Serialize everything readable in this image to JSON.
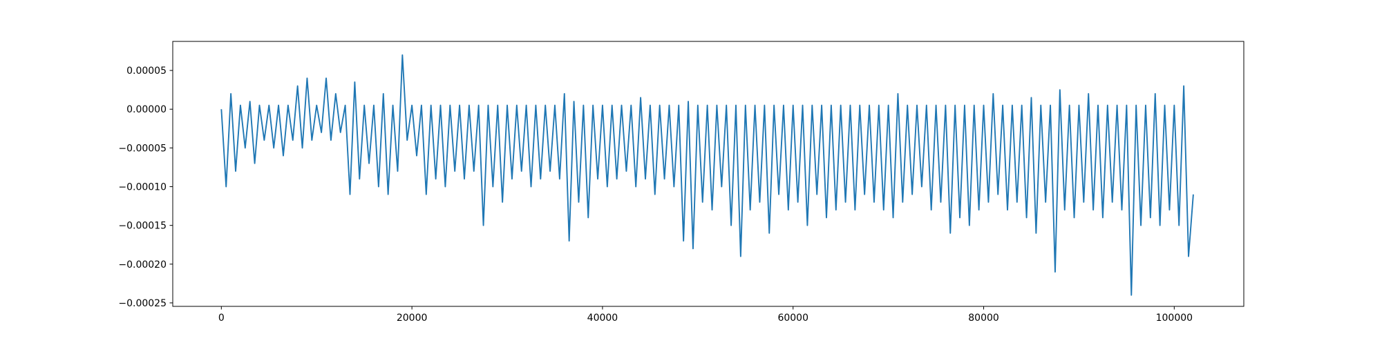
{
  "chart_data": {
    "type": "line",
    "color": "#1f77b4",
    "x": [
      0,
      500,
      1000,
      1500,
      2000,
      2500,
      3000,
      3500,
      4000,
      4500,
      5000,
      5500,
      6000,
      6500,
      7000,
      7500,
      8000,
      8500,
      9000,
      9500,
      10000,
      10500,
      11000,
      11500,
      12000,
      12500,
      13000,
      13500,
      14000,
      14500,
      15000,
      15500,
      16000,
      16500,
      17000,
      17500,
      18000,
      18500,
      19000,
      19500,
      20000,
      20500,
      21000,
      21500,
      22000,
      22500,
      23000,
      23500,
      24000,
      24500,
      25000,
      25500,
      26000,
      26500,
      27000,
      27500,
      28000,
      28500,
      29000,
      29500,
      30000,
      30500,
      31000,
      31500,
      32000,
      32500,
      33000,
      33500,
      34000,
      34500,
      35000,
      35500,
      36000,
      36500,
      37000,
      37500,
      38000,
      38500,
      39000,
      39500,
      40000,
      40500,
      41000,
      41500,
      42000,
      42500,
      43000,
      43500,
      44000,
      44500,
      45000,
      45500,
      46000,
      46500,
      47000,
      47500,
      48000,
      48500,
      49000,
      49500,
      50000,
      50500,
      51000,
      51500,
      52000,
      52500,
      53000,
      53500,
      54000,
      54500,
      55000,
      55500,
      56000,
      56500,
      57000,
      57500,
      58000,
      58500,
      59000,
      59500,
      60000,
      60500,
      61000,
      61500,
      62000,
      62500,
      63000,
      63500,
      64000,
      64500,
      65000,
      65500,
      66000,
      66500,
      67000,
      67500,
      68000,
      68500,
      69000,
      69500,
      70000,
      70500,
      71000,
      71500,
      72000,
      72500,
      73000,
      73500,
      74000,
      74500,
      75000,
      75500,
      76000,
      76500,
      77000,
      77500,
      78000,
      78500,
      79000,
      79500,
      80000,
      80500,
      81000,
      81500,
      82000,
      82500,
      83000,
      83500,
      84000,
      84500,
      85000,
      85500,
      86000,
      86500,
      87000,
      87500,
      88000,
      88500,
      89000,
      89500,
      90000,
      90500,
      91000,
      91500,
      92000,
      92500,
      93000,
      93500,
      94000,
      94500,
      95000,
      95500,
      96000,
      96500,
      97000,
      97500,
      98000,
      98500,
      99000,
      99500,
      100000,
      100500,
      101000,
      101500,
      102000
    ],
    "values": [
      0,
      -0.0001,
      2e-05,
      -8e-05,
      5e-06,
      -5e-05,
      1e-05,
      -7e-05,
      5e-06,
      -4e-05,
      5e-06,
      -5e-05,
      5e-06,
      -6e-05,
      5e-06,
      -4e-05,
      3e-05,
      -5e-05,
      4e-05,
      -4e-05,
      5e-06,
      -3e-05,
      4e-05,
      -4e-05,
      2e-05,
      -3e-05,
      5e-06,
      -0.00011,
      3.5e-05,
      -9e-05,
      5e-06,
      -7e-05,
      5e-06,
      -0.0001,
      2e-05,
      -0.00011,
      5e-06,
      -8e-05,
      7e-05,
      -4e-05,
      5e-06,
      -6e-05,
      5e-06,
      -0.00011,
      5e-06,
      -9e-05,
      5e-06,
      -0.0001,
      5e-06,
      -8e-05,
      5e-06,
      -9e-05,
      5e-06,
      -8e-05,
      5e-06,
      -0.00015,
      5e-06,
      -0.0001,
      5e-06,
      -0.00012,
      5e-06,
      -9e-05,
      5e-06,
      -8e-05,
      5e-06,
      -0.0001,
      5e-06,
      -9e-05,
      5e-06,
      -8e-05,
      5e-06,
      -9e-05,
      2e-05,
      -0.00017,
      1e-05,
      -0.00012,
      5e-06,
      -0.00014,
      5e-06,
      -9e-05,
      5e-06,
      -0.0001,
      5e-06,
      -9e-05,
      5e-06,
      -8e-05,
      5e-06,
      -0.0001,
      1.5e-05,
      -9e-05,
      5e-06,
      -0.00011,
      5e-06,
      -9e-05,
      5e-06,
      -0.0001,
      5e-06,
      -0.00017,
      1e-05,
      -0.00018,
      5e-06,
      -0.00012,
      5e-06,
      -0.00013,
      5e-06,
      -0.0001,
      5e-06,
      -0.00015,
      5e-06,
      -0.00019,
      5e-06,
      -0.00013,
      5e-06,
      -0.00012,
      5e-06,
      -0.00016,
      5e-06,
      -0.00011,
      5e-06,
      -0.00013,
      5e-06,
      -0.00012,
      5e-06,
      -0.00015,
      5e-06,
      -0.00011,
      5e-06,
      -0.00014,
      5e-06,
      -0.00013,
      5e-06,
      -0.00012,
      5e-06,
      -0.00013,
      5e-06,
      -0.00011,
      5e-06,
      -0.00012,
      5e-06,
      -0.00013,
      5e-06,
      -0.00014,
      2e-05,
      -0.00012,
      5e-06,
      -0.00011,
      5e-06,
      -0.0001,
      5e-06,
      -0.00013,
      5e-06,
      -0.00012,
      5e-06,
      -0.00016,
      5e-06,
      -0.00014,
      5e-06,
      -0.00015,
      5e-06,
      -0.00013,
      5e-06,
      -0.00012,
      2e-05,
      -0.00011,
      5e-06,
      -0.00013,
      5e-06,
      -0.00012,
      5e-06,
      -0.00014,
      1.5e-05,
      -0.00016,
      5e-06,
      -0.00012,
      5e-06,
      -0.00021,
      2.5e-05,
      -0.00013,
      5e-06,
      -0.00014,
      5e-06,
      -0.00012,
      2e-05,
      -0.00013,
      5e-06,
      -0.00014,
      5e-06,
      -0.00012,
      5e-06,
      -0.00013,
      5e-06,
      -0.00024,
      5e-06,
      -0.00015,
      5e-06,
      -0.00014,
      2e-05,
      -0.00015,
      5e-06,
      -0.00013,
      5e-06,
      -0.00015,
      3e-05,
      -0.00019,
      -0.00011
    ],
    "xlim": [
      -5100,
      107300
    ],
    "ylim": [
      -0.0002545,
      8.75e-05
    ],
    "xticks": [
      0,
      20000,
      40000,
      60000,
      80000,
      100000
    ],
    "yticks": [
      {
        "value": 5e-05,
        "label": "0.00005"
      },
      {
        "value": 0,
        "label": "0.00000"
      },
      {
        "value": -5e-05,
        "label": "−0.00005"
      },
      {
        "value": -0.0001,
        "label": "−0.00010"
      },
      {
        "value": -0.00015,
        "label": "−0.00015"
      },
      {
        "value": -0.0002,
        "label": "−0.00020"
      },
      {
        "value": -0.00025,
        "label": "−0.00025"
      }
    ],
    "grid": false
  }
}
